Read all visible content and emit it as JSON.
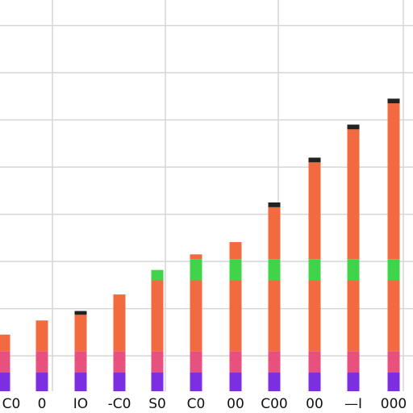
{
  "chart_data": {
    "type": "stacked-bar",
    "categories": [
      "C0",
      "0",
      "IO",
      "-C0",
      "S0",
      "C0",
      "00",
      "C00",
      "00",
      "—I",
      "000"
    ],
    "series": [
      {
        "color": "#7b2fe0",
        "values": [
          0.4,
          0.4,
          0.4,
          0.4,
          0.4,
          0.4,
          0.4,
          0.4,
          0.4,
          0.4,
          0.4
        ]
      },
      {
        "color": "#e8507e",
        "values": [
          0.45,
          0.45,
          0.45,
          0.45,
          0.45,
          0.45,
          0.45,
          0.45,
          0.45,
          0.45,
          0.45
        ]
      },
      {
        "color": "#f26a3f",
        "values": [
          0.35,
          0.65,
          0.77,
          1.2,
          1.5,
          1.5,
          1.5,
          1.5,
          1.5,
          1.5,
          1.5
        ]
      },
      {
        "color": "#3fd44a",
        "values": [
          0,
          0,
          0,
          0,
          0.22,
          0.45,
          0.45,
          0.45,
          0.45,
          0.45,
          0.45
        ]
      },
      {
        "color": "#f26a3f",
        "values": [
          0,
          0,
          0,
          0,
          0,
          0.1,
          0.36,
          1.1,
          2.05,
          2.75,
          3.3
        ]
      },
      {
        "color": "#222222",
        "values": [
          0,
          0,
          0.08,
          0,
          0,
          0,
          0,
          0.1,
          0.1,
          0.1,
          0.1
        ]
      }
    ],
    "ylim": [
      0,
      8
    ],
    "yticks": [
      0.75,
      1.75,
      2.75,
      3.75,
      4.75,
      5.75,
      6.75,
      7.75
    ],
    "grid": true
  }
}
